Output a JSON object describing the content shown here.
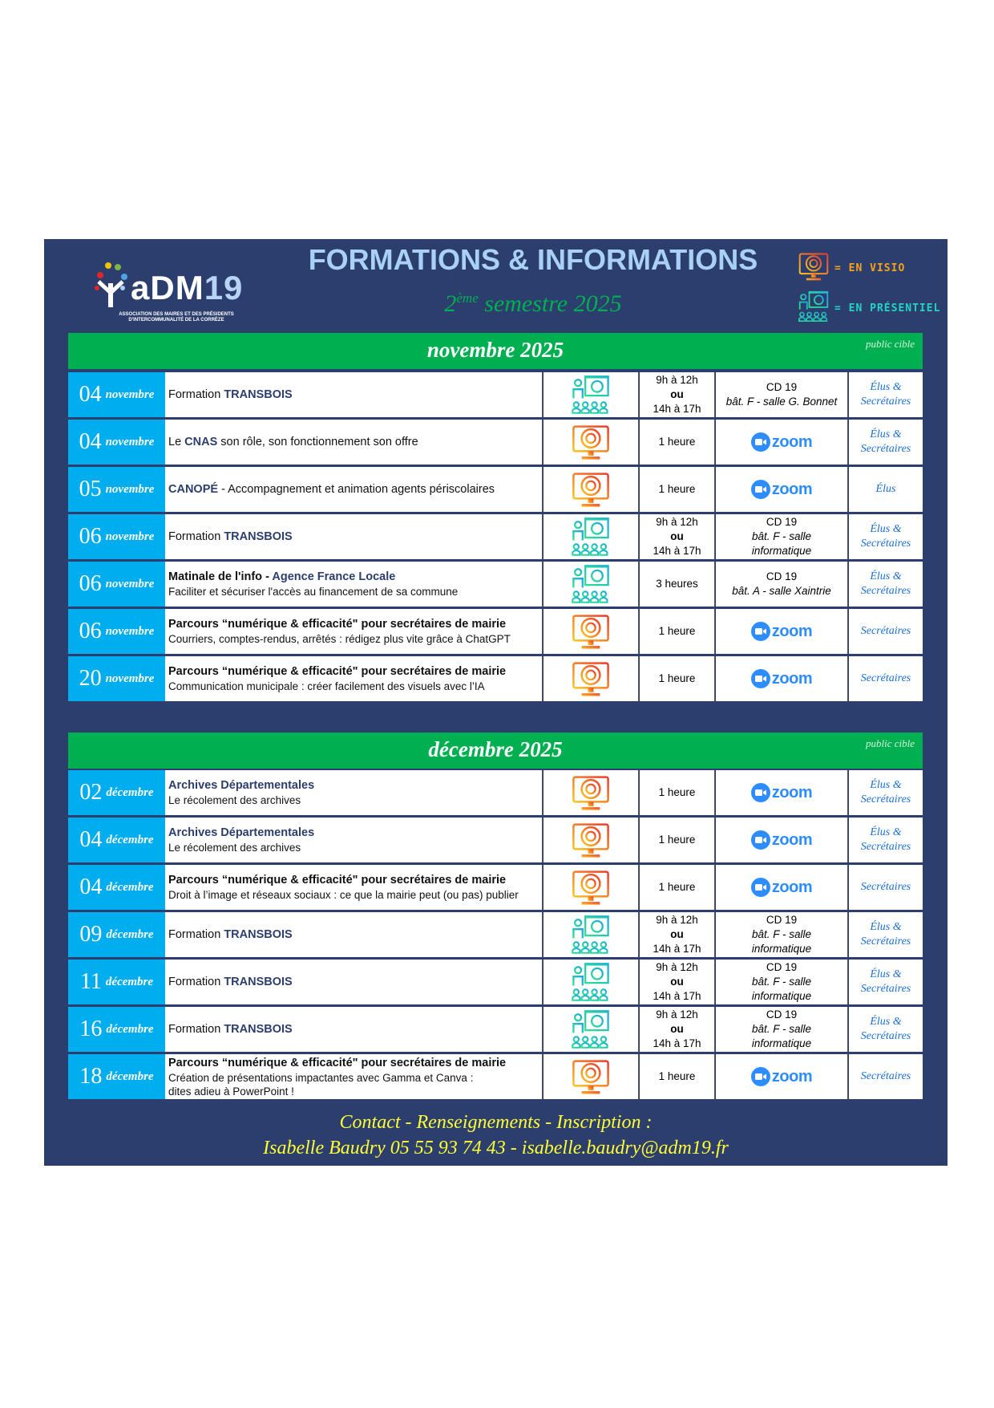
{
  "header": {
    "title": "FORMATIONS & INFORMATIONS",
    "subtitle_sup": "ème",
    "subtitle_num": "2",
    "subtitle_rest": "semestre 2025",
    "logo_text": "aDM19",
    "logo_subtitle": "ASSOCIATION DES MAIRES ET DES PRÉSIDENTS D'INTERCOMMUNALITÉ DE LA CORRÈZE",
    "legend": [
      {
        "icon": "visio-monitor-icon",
        "label": "= EN VISIO"
      },
      {
        "icon": "presentiel-classroom-icon",
        "label": "= EN PRÉSENTIEL"
      }
    ]
  },
  "colors": {
    "background": "#2c3e6e",
    "month_band": "#00b050",
    "date_cell": "#00adee",
    "accent_text": "#2c3e6e",
    "public": "#1a6fd6",
    "footer": "#ffff33",
    "visio": "#f7a21b",
    "presentiel": "#25d3c4"
  },
  "zoom_label": "zoom",
  "months": [
    {
      "title": "novembre 2025",
      "public_label": "public cible",
      "rows": [
        {
          "day": "04",
          "month": "novembre",
          "title": [
            {
              "t": "Formation ",
              "s": "normal"
            },
            {
              "t": "TRANSBOIS",
              "s": "accent"
            }
          ],
          "sub": [],
          "mode": "presentiel",
          "time": [
            "9h à 12h",
            "ou",
            "14h à 17h"
          ],
          "location": [
            "CD 19",
            "bât. F - salle G. Bonnet"
          ],
          "public": [
            "Élus &",
            "Secrétaires"
          ]
        },
        {
          "day": "04",
          "month": "novembre",
          "title": [
            {
              "t": "Le ",
              "s": "normal"
            },
            {
              "t": "CNAS",
              "s": "accent"
            },
            {
              "t": " son rôle, son fonctionnement son offre",
              "s": "normal"
            }
          ],
          "sub": [],
          "mode": "visio",
          "time": [
            "1 heure"
          ],
          "location": "zoom",
          "public": [
            "Élus &",
            "Secrétaires"
          ]
        },
        {
          "day": "05",
          "month": "novembre",
          "title": [
            {
              "t": "CANOPÉ",
              "s": "accent"
            },
            {
              "t": " - Accompagnement et animation agents périscolaires",
              "s": "normal"
            }
          ],
          "sub": [],
          "mode": "visio",
          "time": [
            "1 heure"
          ],
          "location": "zoom",
          "public": [
            "Élus"
          ]
        },
        {
          "day": "06",
          "month": "novembre",
          "title": [
            {
              "t": "Formation ",
              "s": "normal"
            },
            {
              "t": "TRANSBOIS",
              "s": "accent"
            }
          ],
          "sub": [],
          "mode": "presentiel",
          "time": [
            "9h à 12h",
            "ou",
            "14h à 17h"
          ],
          "location": [
            "CD 19",
            "bât. F - salle",
            "informatique"
          ],
          "public": [
            "Élus &",
            "Secrétaires"
          ]
        },
        {
          "day": "06",
          "month": "novembre",
          "title": [
            {
              "t": "Matinale de l'info - ",
              "s": "bold"
            },
            {
              "t": "Agence France Locale",
              "s": "accent"
            }
          ],
          "sub": [
            "Faciliter et sécuriser l'accès au financement de sa commune"
          ],
          "mode": "presentiel",
          "time": [
            "3 heures"
          ],
          "location": [
            "CD 19",
            "bât. A - salle Xaintrie"
          ],
          "public": [
            "Élus &",
            "Secrétaires"
          ]
        },
        {
          "day": "06",
          "month": "novembre",
          "title": [
            {
              "t": "Parcours “numérique & efficacité\" pour secrétaires de mairie",
              "s": "bold"
            }
          ],
          "sub": [
            "Courriers, comptes-rendus, arrêtés : rédigez plus vite grâce à ChatGPT"
          ],
          "mode": "visio",
          "time": [
            "1 heure"
          ],
          "location": "zoom",
          "public": [
            "Secrétaires"
          ]
        },
        {
          "day": "20",
          "month": "novembre",
          "title": [
            {
              "t": "Parcours “numérique & efficacité\" pour secrétaires de mairie",
              "s": "bold"
            }
          ],
          "sub": [
            "Communication municipale : créer facilement des visuels avec l’IA"
          ],
          "mode": "visio",
          "time": [
            "1 heure"
          ],
          "location": "zoom",
          "public": [
            "Secrétaires"
          ]
        }
      ]
    },
    {
      "title": "décembre 2025",
      "public_label": "public cible",
      "rows": [
        {
          "day": "02",
          "month": "décembre",
          "title": [
            {
              "t": "Archives Départementales",
              "s": "accent"
            }
          ],
          "sub": [
            "Le récolement des archives"
          ],
          "mode": "visio",
          "time": [
            "1 heure"
          ],
          "location": "zoom",
          "public": [
            "Élus &",
            "Secrétaires"
          ]
        },
        {
          "day": "04",
          "month": "décembre",
          "title": [
            {
              "t": "Archives Départementales",
              "s": "accent"
            }
          ],
          "sub": [
            "Le récolement des archives"
          ],
          "mode": "visio",
          "time": [
            "1 heure"
          ],
          "location": "zoom",
          "public": [
            "Élus &",
            "Secrétaires"
          ]
        },
        {
          "day": "04",
          "month": "décembre",
          "title": [
            {
              "t": "Parcours “numérique & efficacité\" pour secrétaires de mairie",
              "s": "bold"
            }
          ],
          "sub": [
            "Droit à l’image et réseaux sociaux : ce que la mairie peut (ou pas) publier"
          ],
          "mode": "visio",
          "time": [
            "1 heure"
          ],
          "location": "zoom",
          "public": [
            "Secrétaires"
          ]
        },
        {
          "day": "09",
          "month": "décembre",
          "title": [
            {
              "t": "Formation ",
              "s": "normal"
            },
            {
              "t": "TRANSBOIS",
              "s": "accent"
            }
          ],
          "sub": [],
          "mode": "presentiel",
          "time": [
            "9h à 12h",
            "ou",
            "14h à 17h"
          ],
          "location": [
            "CD 19",
            "bât. F - salle",
            "informatique"
          ],
          "public": [
            "Élus &",
            "Secrétaires"
          ]
        },
        {
          "day": "11",
          "month": "décembre",
          "title": [
            {
              "t": "Formation ",
              "s": "normal"
            },
            {
              "t": "TRANSBOIS",
              "s": "accent"
            }
          ],
          "sub": [],
          "mode": "presentiel",
          "time": [
            "9h à 12h",
            "ou",
            "14h à 17h"
          ],
          "location": [
            "CD 19",
            "bât. F - salle",
            "informatique"
          ],
          "public": [
            "Élus &",
            "Secrétaires"
          ]
        },
        {
          "day": "16",
          "month": "décembre",
          "title": [
            {
              "t": "Formation ",
              "s": "normal"
            },
            {
              "t": "TRANSBOIS",
              "s": "accent"
            }
          ],
          "sub": [],
          "mode": "presentiel",
          "time": [
            "9h à 12h",
            "ou",
            "14h à 17h"
          ],
          "location": [
            "CD 19",
            "bât. F - salle",
            "informatique"
          ],
          "public": [
            "Élus &",
            "Secrétaires"
          ]
        },
        {
          "day": "18",
          "month": "décembre",
          "title": [
            {
              "t": "Parcours “numérique & efficacité\" pour secrétaires de mairie",
              "s": "bold"
            }
          ],
          "sub": [
            "Création de présentations impactantes avec Gamma et Canva :",
            "dites adieu à PowerPoint !"
          ],
          "mode": "visio",
          "time": [
            "1 heure"
          ],
          "location": "zoom",
          "public": [
            "Secrétaires"
          ]
        }
      ]
    }
  ],
  "footer": {
    "line1": "Contact - Renseignements - Inscription :",
    "line2": "Isabelle Baudry 05 55 93 74 43 - isabelle.baudry@adm19.fr"
  }
}
